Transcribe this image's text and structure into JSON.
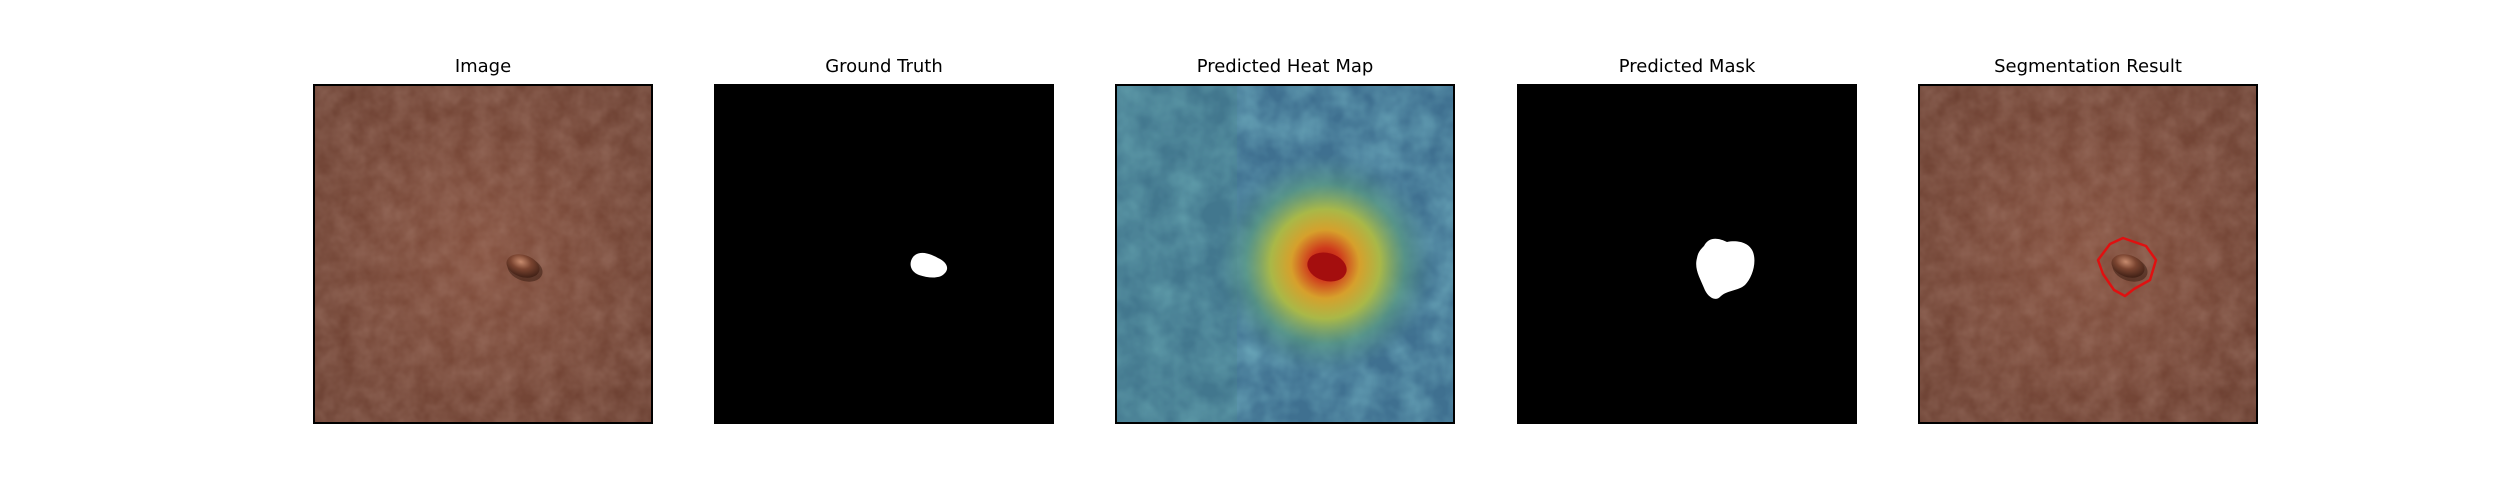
{
  "figure": {
    "panels": [
      {
        "id": "image",
        "title": "Image"
      },
      {
        "id": "ground_truth",
        "title": "Ground Truth"
      },
      {
        "id": "heatmap",
        "title": "Predicted Heat Map"
      },
      {
        "id": "mask",
        "title": "Predicted Mask"
      },
      {
        "id": "segmentation",
        "title": "Segmentation Result"
      }
    ]
  },
  "colors": {
    "leather": "#7a4a3a",
    "leather_dark": "#5e3427",
    "defect": "#6b3b2a",
    "mask_bg": "#000000",
    "mask_fg": "#ffffff",
    "heat_low": "#3d6f8e",
    "heat_mid": "#c8b43a",
    "heat_high": "#c41a1a",
    "contour": "#e01010"
  }
}
